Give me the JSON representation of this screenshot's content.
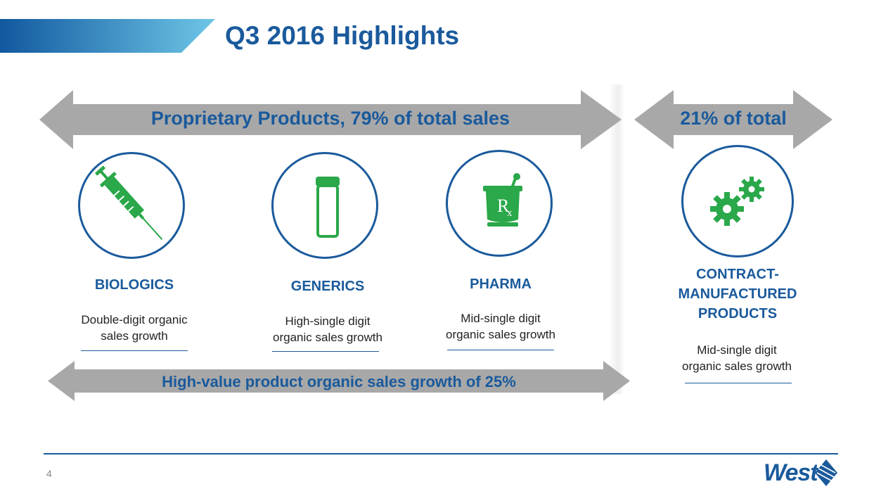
{
  "slide": {
    "title": "Q3 2016 Highlights",
    "page_number": "4"
  },
  "top_arrows": {
    "proprietary_label": "Proprietary Products, 79% of total sales",
    "contract_label": "21% of total"
  },
  "bottom_arrow": {
    "label": "High-value product organic sales growth of 25%"
  },
  "segments": [
    {
      "title": "BIOLOGICS",
      "desc_line1": "Double-digit organic",
      "desc_line2": "sales growth",
      "icon": "syringe-icon"
    },
    {
      "title": "GENERICS",
      "desc_line1": "High-single digit",
      "desc_line2": "organic sales growth",
      "icon": "vial-icon"
    },
    {
      "title": "PHARMA",
      "desc_line1": "Mid-single digit",
      "desc_line2": "organic sales growth",
      "icon": "mortar-pestle-rx-icon"
    },
    {
      "title_line1": "CONTRACT-",
      "title_line2": "MANUFACTURED",
      "title_line3": "PRODUCTS",
      "desc_line1": "Mid-single digit",
      "desc_line2": "organic sales growth",
      "icon": "gears-icon"
    }
  ],
  "logo": {
    "text": "West"
  },
  "colors": {
    "brand_blue": "#1a5a9c",
    "icon_green": "#2aa84a",
    "arrow_gray": "#a8a8a8"
  }
}
